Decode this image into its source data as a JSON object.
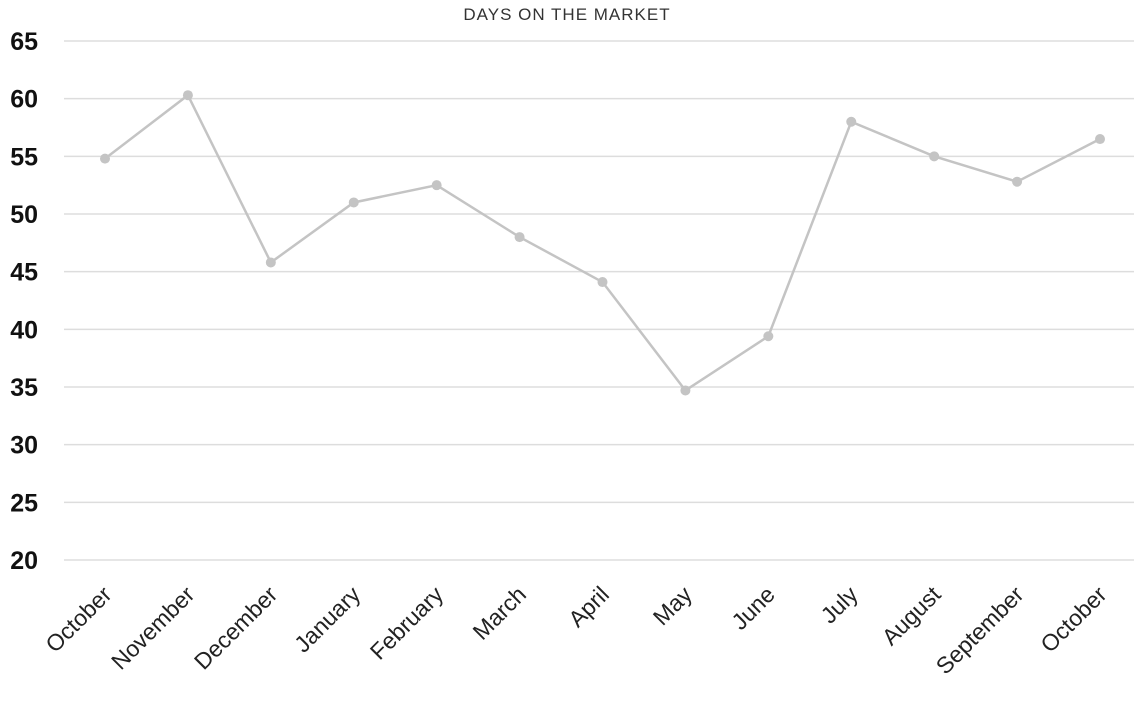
{
  "chart_data": {
    "type": "line",
    "title": "DAYS ON THE MARKET",
    "xlabel": "",
    "ylabel": "",
    "categories": [
      "October",
      "November",
      "December",
      "January",
      "February",
      "March",
      "April",
      "May",
      "June",
      "July",
      "August",
      "September",
      "October"
    ],
    "values": [
      54.8,
      60.3,
      45.8,
      51.0,
      52.5,
      48.0,
      44.1,
      34.7,
      39.4,
      58.0,
      55.0,
      52.8,
      56.5
    ],
    "ylim": [
      20,
      65
    ],
    "yticks": [
      20,
      25,
      30,
      35,
      40,
      45,
      50,
      55,
      60,
      65
    ],
    "grid": true,
    "colors": {
      "line": "#c4c4c4",
      "marker": "#c4c4c4",
      "grid": "#dddddd"
    }
  }
}
